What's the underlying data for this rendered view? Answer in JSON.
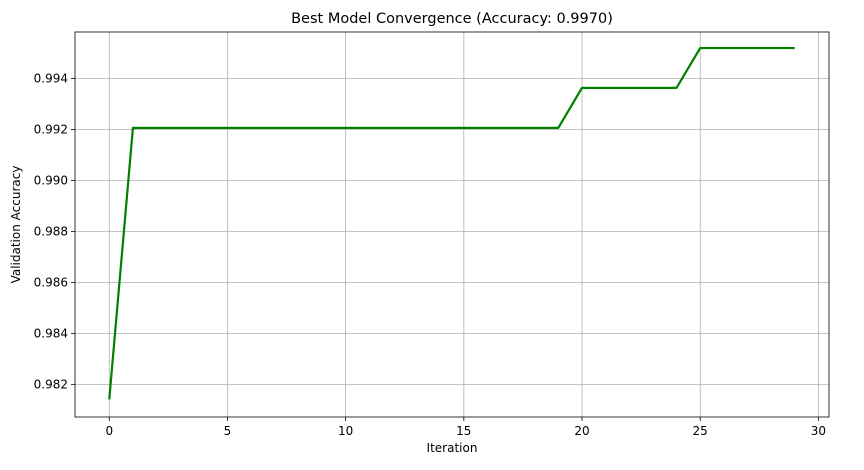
{
  "chart_data": {
    "type": "line",
    "title": "Best Model Convergence (Accuracy: 0.9970)",
    "xlabel": "Iteration",
    "ylabel": "Validation Accuracy",
    "xlim": [
      -1.45,
      30.45
    ],
    "ylim": [
      0.98072,
      0.99582
    ],
    "xticks": [
      0,
      5,
      10,
      15,
      20,
      25,
      30
    ],
    "yticks": [
      0.982,
      0.984,
      0.986,
      0.988,
      0.99,
      0.992,
      0.994
    ],
    "ytick_labels": [
      "0.982",
      "0.984",
      "0.986",
      "0.988",
      "0.990",
      "0.992",
      "0.994"
    ],
    "grid": true,
    "series": [
      {
        "color": "#008000",
        "x": [
          0,
          1,
          2,
          3,
          4,
          5,
          6,
          7,
          8,
          9,
          10,
          11,
          12,
          13,
          14,
          15,
          16,
          17,
          18,
          19,
          20,
          21,
          22,
          23,
          24,
          25,
          26,
          27,
          28,
          29
        ],
        "y": [
          0.98141,
          0.99206,
          0.99206,
          0.99206,
          0.99206,
          0.99206,
          0.99206,
          0.99206,
          0.99206,
          0.99206,
          0.99206,
          0.99206,
          0.99206,
          0.99206,
          0.99206,
          0.99206,
          0.99206,
          0.99206,
          0.99206,
          0.99206,
          0.99363,
          0.99363,
          0.99363,
          0.99363,
          0.99363,
          0.99519,
          0.99519,
          0.99519,
          0.99519,
          0.99519
        ]
      }
    ]
  }
}
